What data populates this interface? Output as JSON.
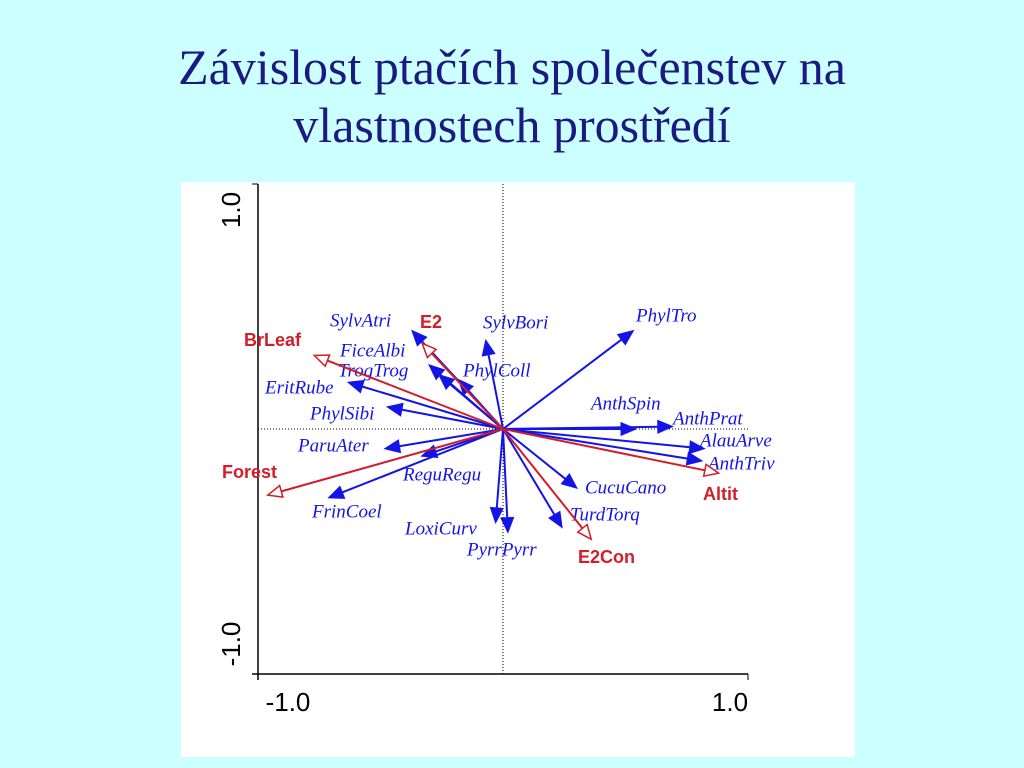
{
  "chart_data": {
    "type": "biplot",
    "title": "Závislost ptačích společenstev na vlastnostech prostředí",
    "xlim": [
      -1,
      1
    ],
    "ylim": [
      -1,
      1
    ],
    "xticks": [
      {
        "value": -1,
        "label": "-1.0"
      },
      {
        "value": 1,
        "label": "1.0"
      }
    ],
    "yticks": [
      {
        "value": -1,
        "label": "-1.0"
      },
      {
        "value": 1,
        "label": "1.0"
      }
    ],
    "series": [
      {
        "color": "#1414e6",
        "arrowhead": "filled",
        "label_font": "serif-italic",
        "labels": [
          "SylvAtri",
          "SylvBori",
          "PhylTro",
          "FiceAlbi",
          "TrogTrog",
          "PhylColl",
          "EritRube",
          "PhylSibi",
          "ParuAter",
          "ReguRegu",
          "FrinCoel",
          "LoxiCurv",
          "PyrrPyrr",
          "TurdTorq",
          "CucuCano",
          "AnthSpin",
          "AnthPrat",
          "AlauArve",
          "AnthTriv"
        ],
        "x": [
          -0.37,
          -0.07,
          0.53,
          -0.3,
          -0.26,
          -0.18,
          -0.63,
          -0.47,
          -0.48,
          -0.33,
          -0.71,
          -0.03,
          0.02,
          0.24,
          0.3,
          0.54,
          0.69,
          0.82,
          0.81
        ],
        "y": [
          0.4,
          0.36,
          0.4,
          0.26,
          0.22,
          0.2,
          0.19,
          0.09,
          -0.08,
          -0.11,
          -0.28,
          -0.38,
          -0.42,
          -0.4,
          -0.24,
          0.0,
          0.01,
          -0.08,
          -0.13
        ]
      },
      {
        "color": "#d21e28",
        "arrowhead": "open",
        "label_font": "sans-bold",
        "labels": [
          "E2",
          "BrLeaf",
          "Forest",
          "Altit",
          "E2Con"
        ],
        "x": [
          -0.33,
          -0.77,
          -0.96,
          0.88,
          0.36
        ],
        "y": [
          0.35,
          0.3,
          -0.27,
          -0.18,
          -0.45
        ]
      }
    ]
  }
}
